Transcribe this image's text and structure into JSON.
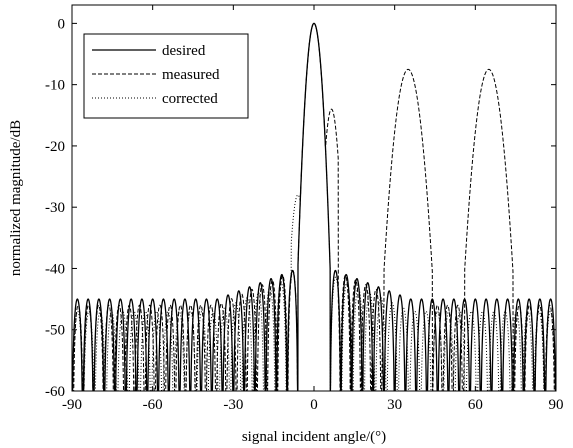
{
  "chart_data": {
    "type": "line",
    "title": "",
    "xlabel": "signal incident angle/(°)",
    "ylabel": "normalized magnitude/dB",
    "xlim": [
      -90,
      90
    ],
    "ylim": [
      -60,
      3
    ],
    "xticks": [
      -90,
      -60,
      -30,
      0,
      30,
      60,
      90
    ],
    "yticks": [
      0,
      -10,
      -20,
      -30,
      -40,
      -50,
      -60
    ],
    "xtick_labels": [
      "-90",
      "-60",
      "-30",
      "0",
      "30",
      "60",
      "90"
    ],
    "ytick_labels": [
      "0",
      "-10",
      "-20",
      "-30",
      "-40",
      "-50",
      "-60"
    ],
    "grid": false,
    "legend_position": "top-left",
    "series": [
      {
        "name": "desired",
        "line_style": "solid",
        "color": "#000000",
        "main_lobe": {
          "center": 0,
          "peak": 0,
          "half_width": 6
        },
        "grating_lobes": [],
        "first_sidelobe_level": -40,
        "far_sidelobe_level": -45,
        "sidelobe_period": 4.0,
        "floor": -60
      },
      {
        "name": "measured",
        "line_style": "dashed",
        "color": "#000000",
        "main_lobe": {
          "center": 0,
          "peak": 0,
          "half_width": 6
        },
        "shoulder": {
          "center": 6.5,
          "peak": -14
        },
        "grating_lobes": [
          {
            "center": 35,
            "peak": -7.5,
            "half_width": 9
          },
          {
            "center": 65,
            "peak": -7.5,
            "half_width": 9
          }
        ],
        "first_sidelobe_level": -40,
        "far_sidelobe_level": -46,
        "sidelobe_period": 3.8,
        "floor": -60
      },
      {
        "name": "corrected",
        "line_style": "dotted",
        "color": "#000000",
        "main_lobe": {
          "center": 0,
          "peak": 0,
          "half_width": 6
        },
        "shoulder": {
          "center": -6,
          "peak": -28
        },
        "grating_lobes": [],
        "first_sidelobe_level": -41,
        "far_sidelobe_level": -47,
        "sidelobe_period": 4.2,
        "floor": -60
      }
    ]
  }
}
